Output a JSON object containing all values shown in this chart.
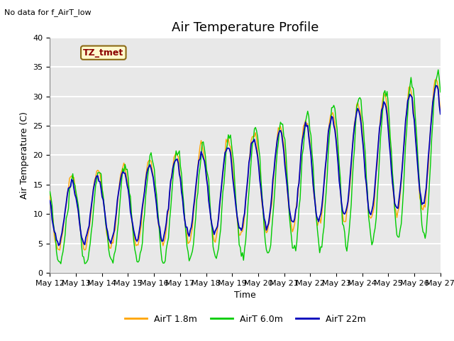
{
  "title": "Air Temperature Profile",
  "subtitle": "No data for f_AirT_low",
  "xlabel": "Time",
  "ylabel": "Air Temperature (C)",
  "tz_label": "TZ_tmet",
  "legend_entries": [
    "AirT 1.8m",
    "AirT 6.0m",
    "AirT 22m"
  ],
  "legend_colors": [
    "#FFA500",
    "#00CC00",
    "#0000CC"
  ],
  "ylim": [
    0,
    40
  ],
  "n_days": 15,
  "x_tick_labels": [
    "May 12",
    "May 13",
    "May 14",
    "May 15",
    "May 16",
    "May 17",
    "May 18",
    "May 19",
    "May 20",
    "May 21",
    "May 22",
    "May 23",
    "May 24",
    "May 25",
    "May 26",
    "May 27"
  ],
  "plot_bg_color": "#E8E8E8",
  "grid_color": "#FFFFFF",
  "title_fontsize": 13,
  "axis_fontsize": 9,
  "tick_fontsize": 8
}
